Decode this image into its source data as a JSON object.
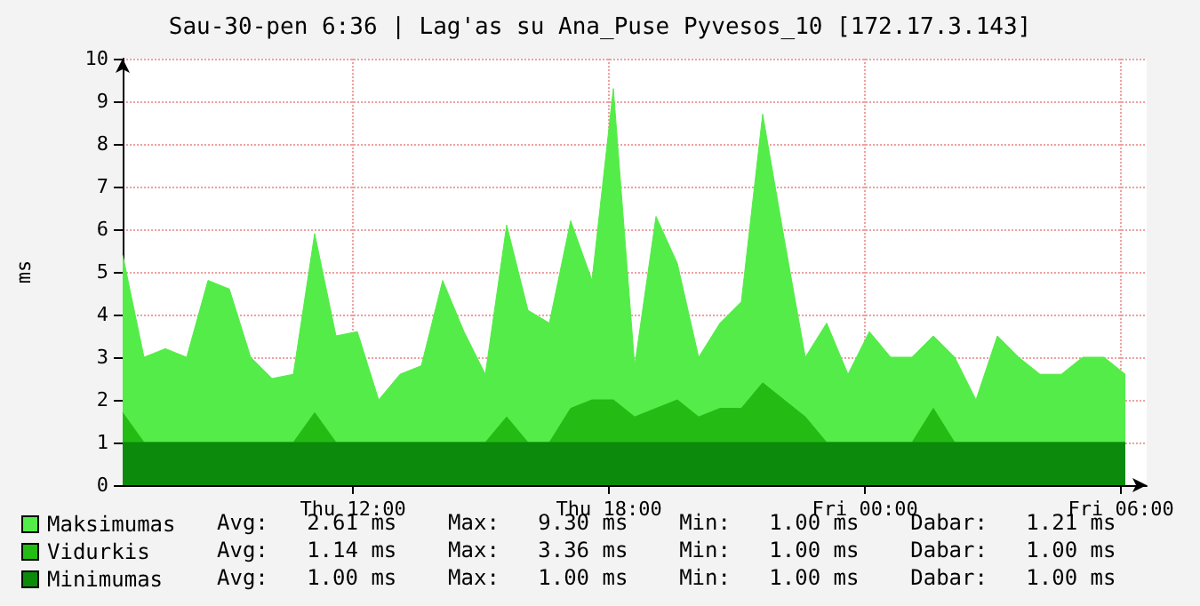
{
  "chart_data": {
    "type": "area",
    "title": "Sau-30-pen 6:36 | Lag'as su Ana_Puse Pyvesos_10 [172.17.3.143]",
    "ylabel": "ms",
    "x": [
      "--01-29T06:36",
      "--01-29T07:06",
      "--01-29T07:36",
      "--01-29T08:06",
      "--01-29T08:36",
      "--01-29T09:06",
      "--01-29T09:36",
      "--01-29T10:06",
      "--01-29T10:36",
      "--01-29T11:06",
      "--01-29T11:36",
      "--01-29T12:06",
      "--01-29T12:36",
      "--01-29T13:06",
      "--01-29T13:36",
      "--01-29T14:06",
      "--01-29T14:36",
      "--01-29T15:06",
      "--01-29T15:36",
      "--01-29T16:06",
      "--01-29T16:36",
      "--01-29T17:06",
      "--01-29T17:36",
      "--01-29T18:06",
      "--01-29T18:36",
      "--01-29T19:06",
      "--01-29T19:36",
      "--01-29T20:06",
      "--01-29T20:36",
      "--01-29T21:06",
      "--01-29T21:36",
      "--01-29T22:06",
      "--01-29T22:36",
      "--01-29T23:06",
      "--01-29T23:36",
      "--01-30T00:06",
      "--01-30T00:36",
      "--01-30T01:06",
      "--01-30T01:36",
      "--01-30T02:06",
      "--01-30T02:36",
      "--01-30T03:06",
      "--01-30T03:36",
      "--01-30T04:06",
      "--01-30T04:36",
      "--01-30T05:06",
      "--01-30T05:36",
      "--01-30T06:06"
    ],
    "xlim": [
      "--01-29T06:36",
      "--01-30T06:36"
    ],
    "xticks": [
      {
        "value": "--01-29T12:00",
        "label": "Thu 12:00"
      },
      {
        "value": "--01-29T18:00",
        "label": "Thu 18:00"
      },
      {
        "value": "--01-30T00:00",
        "label": "Fri 00:00"
      },
      {
        "value": "--01-30T06:00",
        "label": "Fri 06:00"
      }
    ],
    "ylim": [
      0,
      10
    ],
    "yticks": [
      0,
      1,
      2,
      3,
      4,
      5,
      6,
      7,
      8,
      9,
      10
    ],
    "grid": true,
    "legend": "bottom left",
    "line_style": "solid",
    "series": [
      {
        "name": "Maksimumas",
        "color": "#54ec48",
        "values": [
          5.4,
          3.0,
          3.2,
          3.0,
          4.8,
          4.6,
          3.0,
          2.5,
          2.6,
          5.9,
          3.5,
          3.6,
          2.0,
          2.6,
          2.8,
          4.8,
          3.6,
          2.6,
          6.1,
          4.1,
          3.8,
          6.2,
          4.8,
          9.3,
          2.8,
          6.3,
          5.2,
          3.0,
          3.8,
          4.3,
          8.7,
          5.8,
          3.0,
          3.8,
          2.6,
          3.6,
          3.0,
          3.0,
          3.5,
          3.0,
          2.0,
          3.5,
          3.0,
          2.6,
          2.6,
          3.0,
          3.0,
          2.6
        ]
      },
      {
        "name": "Vidurkis",
        "color": "#24bc14",
        "values": [
          1.7,
          1.0,
          1.0,
          1.0,
          1.0,
          1.0,
          1.0,
          1.0,
          1.0,
          1.7,
          1.0,
          1.0,
          1.0,
          1.0,
          1.0,
          1.0,
          1.0,
          1.0,
          1.6,
          1.0,
          1.0,
          1.8,
          2.0,
          2.0,
          1.6,
          1.8,
          2.0,
          1.6,
          1.8,
          1.8,
          2.4,
          2.0,
          1.6,
          1.0,
          1.0,
          1.0,
          1.0,
          1.0,
          1.8,
          1.0,
          1.0,
          1.0,
          1.0,
          1.0,
          1.0,
          1.0,
          1.0,
          1.0
        ]
      },
      {
        "name": "Minimumas",
        "color": "#0c8a0c",
        "values": [
          1.0,
          1.0,
          1.0,
          1.0,
          1.0,
          1.0,
          1.0,
          1.0,
          1.0,
          1.0,
          1.0,
          1.0,
          1.0,
          1.0,
          1.0,
          1.0,
          1.0,
          1.0,
          1.0,
          1.0,
          1.0,
          1.0,
          1.0,
          1.0,
          1.0,
          1.0,
          1.0,
          1.0,
          1.0,
          1.0,
          1.0,
          1.0,
          1.0,
          1.0,
          1.0,
          1.0,
          1.0,
          1.0,
          1.0,
          1.0,
          1.0,
          1.0,
          1.0,
          1.0,
          1.0,
          1.0,
          1.0,
          1.0
        ]
      }
    ],
    "annotations": [
      "Avg:   2.61 ms    Max:   9.30 ms    Min:   1.00 ms    Dabar:   1.21 ms",
      "Avg:   1.14 ms    Max:   3.36 ms    Min:   1.00 ms    Dabar:   1.00 ms",
      "Avg:   1.00 ms    Max:   1.00 ms    Min:   1.00 ms    Dabar:   1.00 ms"
    ]
  }
}
